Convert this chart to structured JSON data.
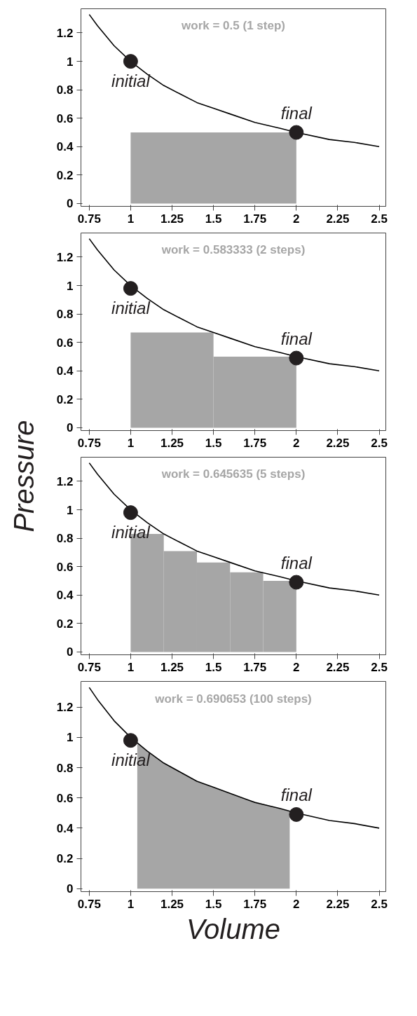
{
  "chart_data": [
    {
      "type": "line",
      "title": "work = 0.5 (1 step)",
      "xlim": [
        0.7,
        2.54
      ],
      "ylim": [
        -0.02,
        1.37
      ],
      "xticks": [
        0.75,
        1,
        1.25,
        1.5,
        1.75,
        2,
        2.25,
        2.5
      ],
      "yticks": [
        0,
        0.2,
        0.4,
        0.6,
        0.8,
        1,
        1.2
      ],
      "series": [
        {
          "type": "histogram",
          "color": "#a6a6a6",
          "bins": [
            1,
            2
          ],
          "values": [
            0.5
          ]
        },
        {
          "color": "#000000",
          "x": [
            0.75,
            0.8,
            0.85,
            0.9,
            1,
            1.1,
            1.2,
            1.3,
            1.4,
            1.5,
            1.6,
            1.75,
            1.9,
            2,
            2.2,
            2.35,
            2.5
          ],
          "values": [
            1.33,
            1.25,
            1.18,
            1.11,
            1,
            0.91,
            0.83,
            0.77,
            0.71,
            0.67,
            0.63,
            0.57,
            0.53,
            0.5,
            0.45,
            0.43,
            0.4
          ]
        },
        {
          "type": "scatter",
          "color": "#231f20",
          "x": [
            1,
            2
          ],
          "values": [
            1,
            0.5
          ]
        }
      ],
      "annotations": [
        "initial",
        "final"
      ]
    },
    {
      "type": "line",
      "title": "work = 0.583333 (2 steps)",
      "xlim": [
        0.7,
        2.54
      ],
      "ylim": [
        -0.02,
        1.37
      ],
      "xticks": [
        0.75,
        1,
        1.25,
        1.5,
        1.75,
        2,
        2.25,
        2.5
      ],
      "yticks": [
        0,
        0.2,
        0.4,
        0.6,
        0.8,
        1,
        1.2
      ],
      "series": [
        {
          "type": "histogram",
          "color": "#a6a6a6",
          "bins": [
            1,
            1.5,
            2
          ],
          "values": [
            0.67,
            0.5
          ]
        },
        {
          "color": "#000000",
          "x": [
            0.75,
            0.8,
            0.85,
            0.9,
            1,
            1.1,
            1.2,
            1.3,
            1.4,
            1.5,
            1.6,
            1.75,
            1.9,
            2,
            2.2,
            2.35,
            2.5
          ],
          "values": [
            1.33,
            1.25,
            1.18,
            1.11,
            1,
            0.91,
            0.83,
            0.77,
            0.71,
            0.67,
            0.63,
            0.57,
            0.53,
            0.5,
            0.45,
            0.43,
            0.4
          ]
        },
        {
          "type": "scatter",
          "color": "#231f20",
          "x": [
            1,
            2
          ],
          "values": [
            0.98,
            0.49
          ]
        }
      ],
      "annotations": [
        "initial",
        "final"
      ]
    },
    {
      "type": "line",
      "title": "work = 0.645635 (5 steps)",
      "ylabel": "Pressure",
      "xlim": [
        0.7,
        2.54
      ],
      "ylim": [
        -0.02,
        1.37
      ],
      "xticks": [
        0.75,
        1,
        1.25,
        1.5,
        1.75,
        2,
        2.25,
        2.5
      ],
      "yticks": [
        0,
        0.2,
        0.4,
        0.6,
        0.8,
        1,
        1.2
      ],
      "series": [
        {
          "type": "histogram",
          "color": "#a6a6a6",
          "bins": [
            1,
            1.2,
            1.4,
            1.6,
            1.8,
            2
          ],
          "values": [
            0.83,
            0.71,
            0.63,
            0.56,
            0.5
          ]
        },
        {
          "color": "#000000",
          "x": [
            0.75,
            0.8,
            0.85,
            0.9,
            1,
            1.1,
            1.2,
            1.3,
            1.4,
            1.5,
            1.6,
            1.75,
            1.9,
            2,
            2.2,
            2.35,
            2.5
          ],
          "values": [
            1.33,
            1.25,
            1.18,
            1.11,
            1,
            0.91,
            0.83,
            0.77,
            0.71,
            0.67,
            0.63,
            0.57,
            0.53,
            0.5,
            0.45,
            0.43,
            0.4
          ]
        },
        {
          "type": "scatter",
          "color": "#231f20",
          "x": [
            1,
            2
          ],
          "values": [
            0.98,
            0.49
          ]
        }
      ],
      "annotations": [
        "initial",
        "final"
      ]
    },
    {
      "type": "line",
      "title": "work = 0.690653 (100 steps)",
      "xlabel": "Volume",
      "xlim": [
        0.7,
        2.54
      ],
      "ylim": [
        -0.02,
        1.37
      ],
      "xticks": [
        0.75,
        1,
        1.25,
        1.5,
        1.75,
        2,
        2.25,
        2.5
      ],
      "yticks": [
        0,
        0.2,
        0.4,
        0.6,
        0.8,
        1,
        1.2
      ],
      "series": [
        {
          "type": "area",
          "color": "#a6a6a6",
          "x": [
            1.04,
            1.1,
            1.2,
            1.3,
            1.4,
            1.5,
            1.6,
            1.7,
            1.8,
            1.9,
            1.96
          ],
          "values": [
            0.96,
            0.91,
            0.83,
            0.77,
            0.71,
            0.67,
            0.63,
            0.59,
            0.56,
            0.53,
            0.51
          ]
        },
        {
          "color": "#000000",
          "x": [
            0.75,
            0.8,
            0.85,
            0.9,
            1,
            1.1,
            1.2,
            1.3,
            1.4,
            1.5,
            1.6,
            1.75,
            1.9,
            2,
            2.2,
            2.35,
            2.5
          ],
          "values": [
            1.33,
            1.25,
            1.18,
            1.11,
            1,
            0.91,
            0.83,
            0.77,
            0.71,
            0.67,
            0.63,
            0.57,
            0.53,
            0.5,
            0.45,
            0.43,
            0.4
          ]
        },
        {
          "type": "scatter",
          "color": "#231f20",
          "x": [
            1,
            2
          ],
          "values": [
            0.98,
            0.49
          ]
        }
      ],
      "annotations": [
        "initial",
        "final"
      ]
    }
  ]
}
